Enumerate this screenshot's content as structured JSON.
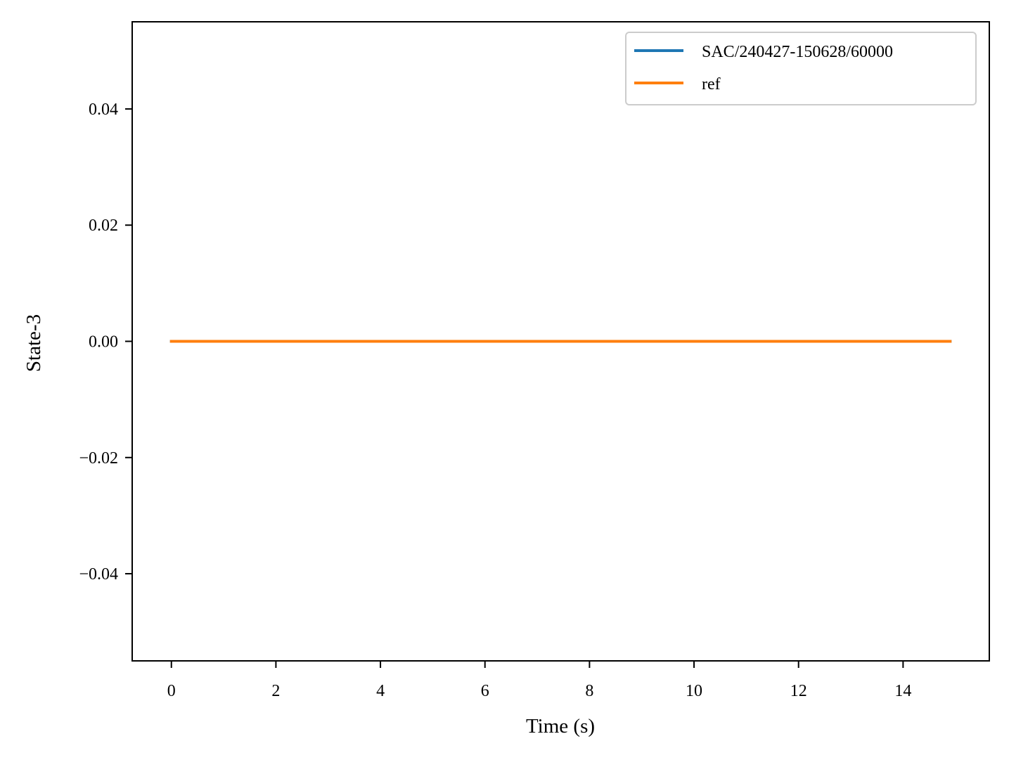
{
  "chart_data": {
    "type": "line",
    "title": "",
    "xlabel": "Time (s)",
    "ylabel": "State-3",
    "xlim": [
      -0.75,
      15.65
    ],
    "ylim": [
      -0.055,
      0.055
    ],
    "xticks": [
      0,
      2,
      4,
      6,
      8,
      10,
      12,
      14
    ],
    "xtick_labels": [
      "0",
      "2",
      "4",
      "6",
      "8",
      "10",
      "12",
      "14"
    ],
    "yticks": [
      0.04,
      0.02,
      0.0,
      -0.02,
      -0.04
    ],
    "ytick_labels": [
      "0.04",
      "0.02",
      "0.00",
      "−0.02",
      "−0.04"
    ],
    "grid": false,
    "legend_position": "top-right",
    "series": [
      {
        "name": "SAC/240427-150628/60000",
        "color": "#1f77b4",
        "x": [
          0,
          14.9
        ],
        "y": [
          0,
          0
        ]
      },
      {
        "name": "ref",
        "color": "#ff7f0e",
        "x": [
          0,
          14.9
        ],
        "y": [
          0,
          0
        ]
      }
    ]
  }
}
